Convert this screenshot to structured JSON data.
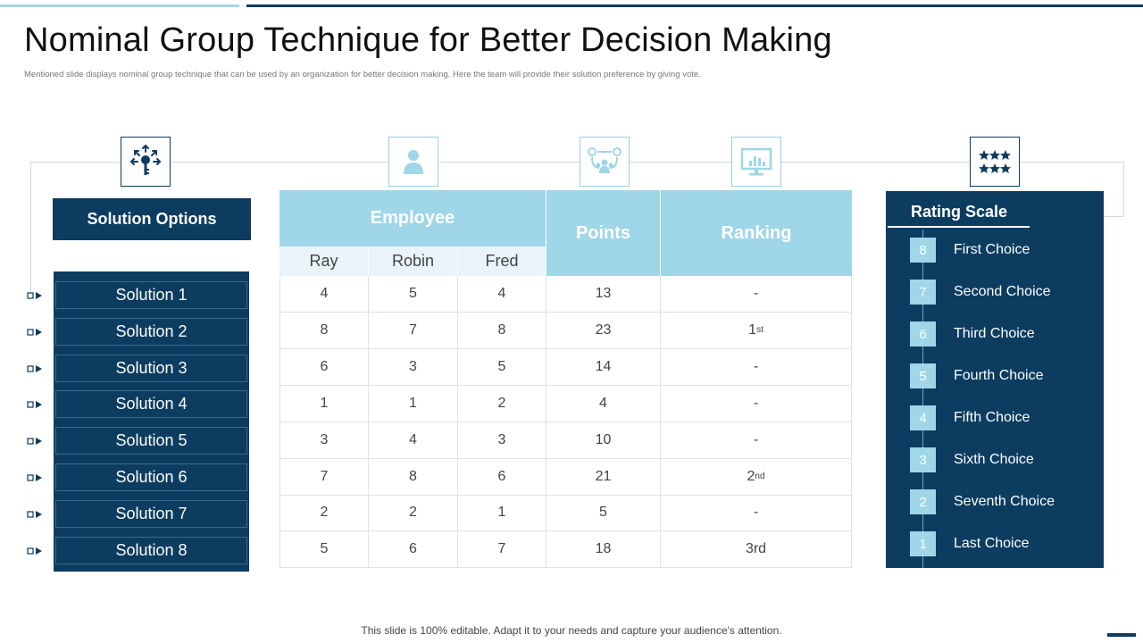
{
  "title": "Nominal Group Technique for Better Decision Making",
  "subtitle": "Mentioned slide displays nominal group technique that can be used by an organization for better decision making.  Here the team will provide their solution preference by giving vote.",
  "icons": [
    "key-network-icon",
    "person-icon",
    "team-network-icon",
    "monitor-chart-icon",
    "stars-rating-icon"
  ],
  "solution_options": {
    "header": "Solution Options",
    "items": [
      "Solution 1",
      "Solution 2",
      "Solution 3",
      "Solution 4",
      "Solution 5",
      "Solution 6",
      "Solution 7",
      "Solution 8"
    ]
  },
  "table": {
    "employee_header": "Employee",
    "points_header": "Points",
    "ranking_header": "Ranking",
    "employees": [
      "Ray",
      "Robin",
      "Fred"
    ],
    "rows": [
      {
        "ray": "4",
        "robin": "5",
        "fred": "4",
        "points": "13",
        "rank": "-",
        "sup": ""
      },
      {
        "ray": "8",
        "robin": "7",
        "fred": "8",
        "points": "23",
        "rank": "1",
        "sup": "st"
      },
      {
        "ray": "6",
        "robin": "3",
        "fred": "5",
        "points": "14",
        "rank": "-",
        "sup": ""
      },
      {
        "ray": "1",
        "robin": "1",
        "fred": "2",
        "points": "4",
        "rank": "-",
        "sup": ""
      },
      {
        "ray": "3",
        "robin": "4",
        "fred": "3",
        "points": "10",
        "rank": "-",
        "sup": ""
      },
      {
        "ray": "7",
        "robin": "8",
        "fred": "6",
        "points": "21",
        "rank": "2",
        "sup": "nd"
      },
      {
        "ray": "2",
        "robin": "2",
        "fred": "1",
        "points": "5",
        "rank": "-",
        "sup": ""
      },
      {
        "ray": "5",
        "robin": "6",
        "fred": "7",
        "points": "18",
        "rank": "3rd",
        "sup": ""
      }
    ]
  },
  "rating_scale": {
    "title": "Rating Scale",
    "items": [
      {
        "num": "8",
        "label": "First Choice"
      },
      {
        "num": "7",
        "label": "Second Choice"
      },
      {
        "num": "6",
        "label": "Third Choice"
      },
      {
        "num": "5",
        "label": "Fourth  Choice"
      },
      {
        "num": "4",
        "label": "Fifth Choice"
      },
      {
        "num": "3",
        "label": "Sixth Choice"
      },
      {
        "num": "2",
        "label": "Seventh  Choice"
      },
      {
        "num": "1",
        "label": "Last Choice"
      }
    ]
  },
  "footer": "This slide is 100% editable. Adapt it to your needs and capture your audience's attention.",
  "colors": {
    "navy": "#0c3c60",
    "light_blue": "#9fd6e8",
    "pale_blue": "#e8f4f9"
  }
}
